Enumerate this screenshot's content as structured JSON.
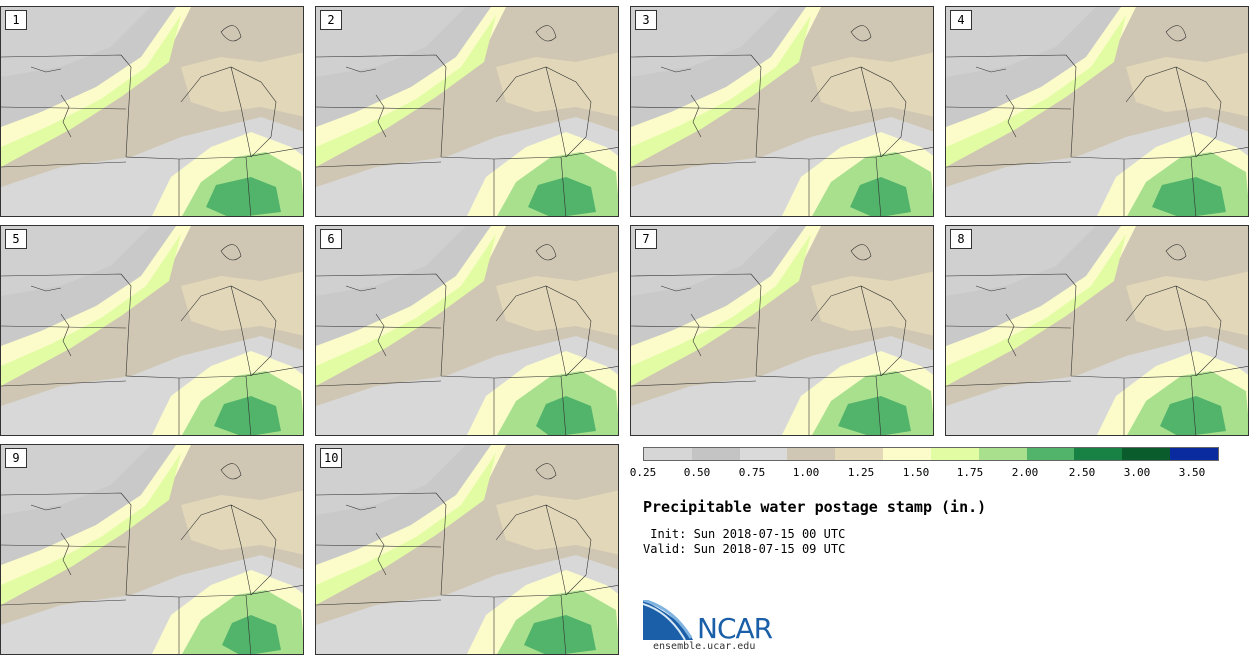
{
  "panels": [
    {
      "label": "1"
    },
    {
      "label": "2"
    },
    {
      "label": "3"
    },
    {
      "label": "4"
    },
    {
      "label": "5"
    },
    {
      "label": "6"
    },
    {
      "label": "7"
    },
    {
      "label": "8"
    },
    {
      "label": "9"
    },
    {
      "label": "10"
    }
  ],
  "legend": {
    "colors": [
      "#d6d6d6",
      "#c4c4c4",
      "#dadada",
      "#cfc7b3",
      "#e3d9b9",
      "#fcfccb",
      "#e2fca3",
      "#a9e08e",
      "#52b36b",
      "#188244",
      "#0b5c2c",
      "#0a2aa0"
    ],
    "ticks": [
      "0.25",
      "0.50",
      "0.75",
      "1.00",
      "1.25",
      "1.50",
      "1.75",
      "2.00",
      "2.50",
      "3.00",
      "3.50"
    ]
  },
  "title": "Precipitable water postage stamp (in.)",
  "init": " Init: Sun 2018-07-15 00 UTC",
  "valid": "Valid: Sun 2018-07-15 09 UTC",
  "logo": {
    "text": "NCAR",
    "url": "ensemble.ucar.edu"
  }
}
